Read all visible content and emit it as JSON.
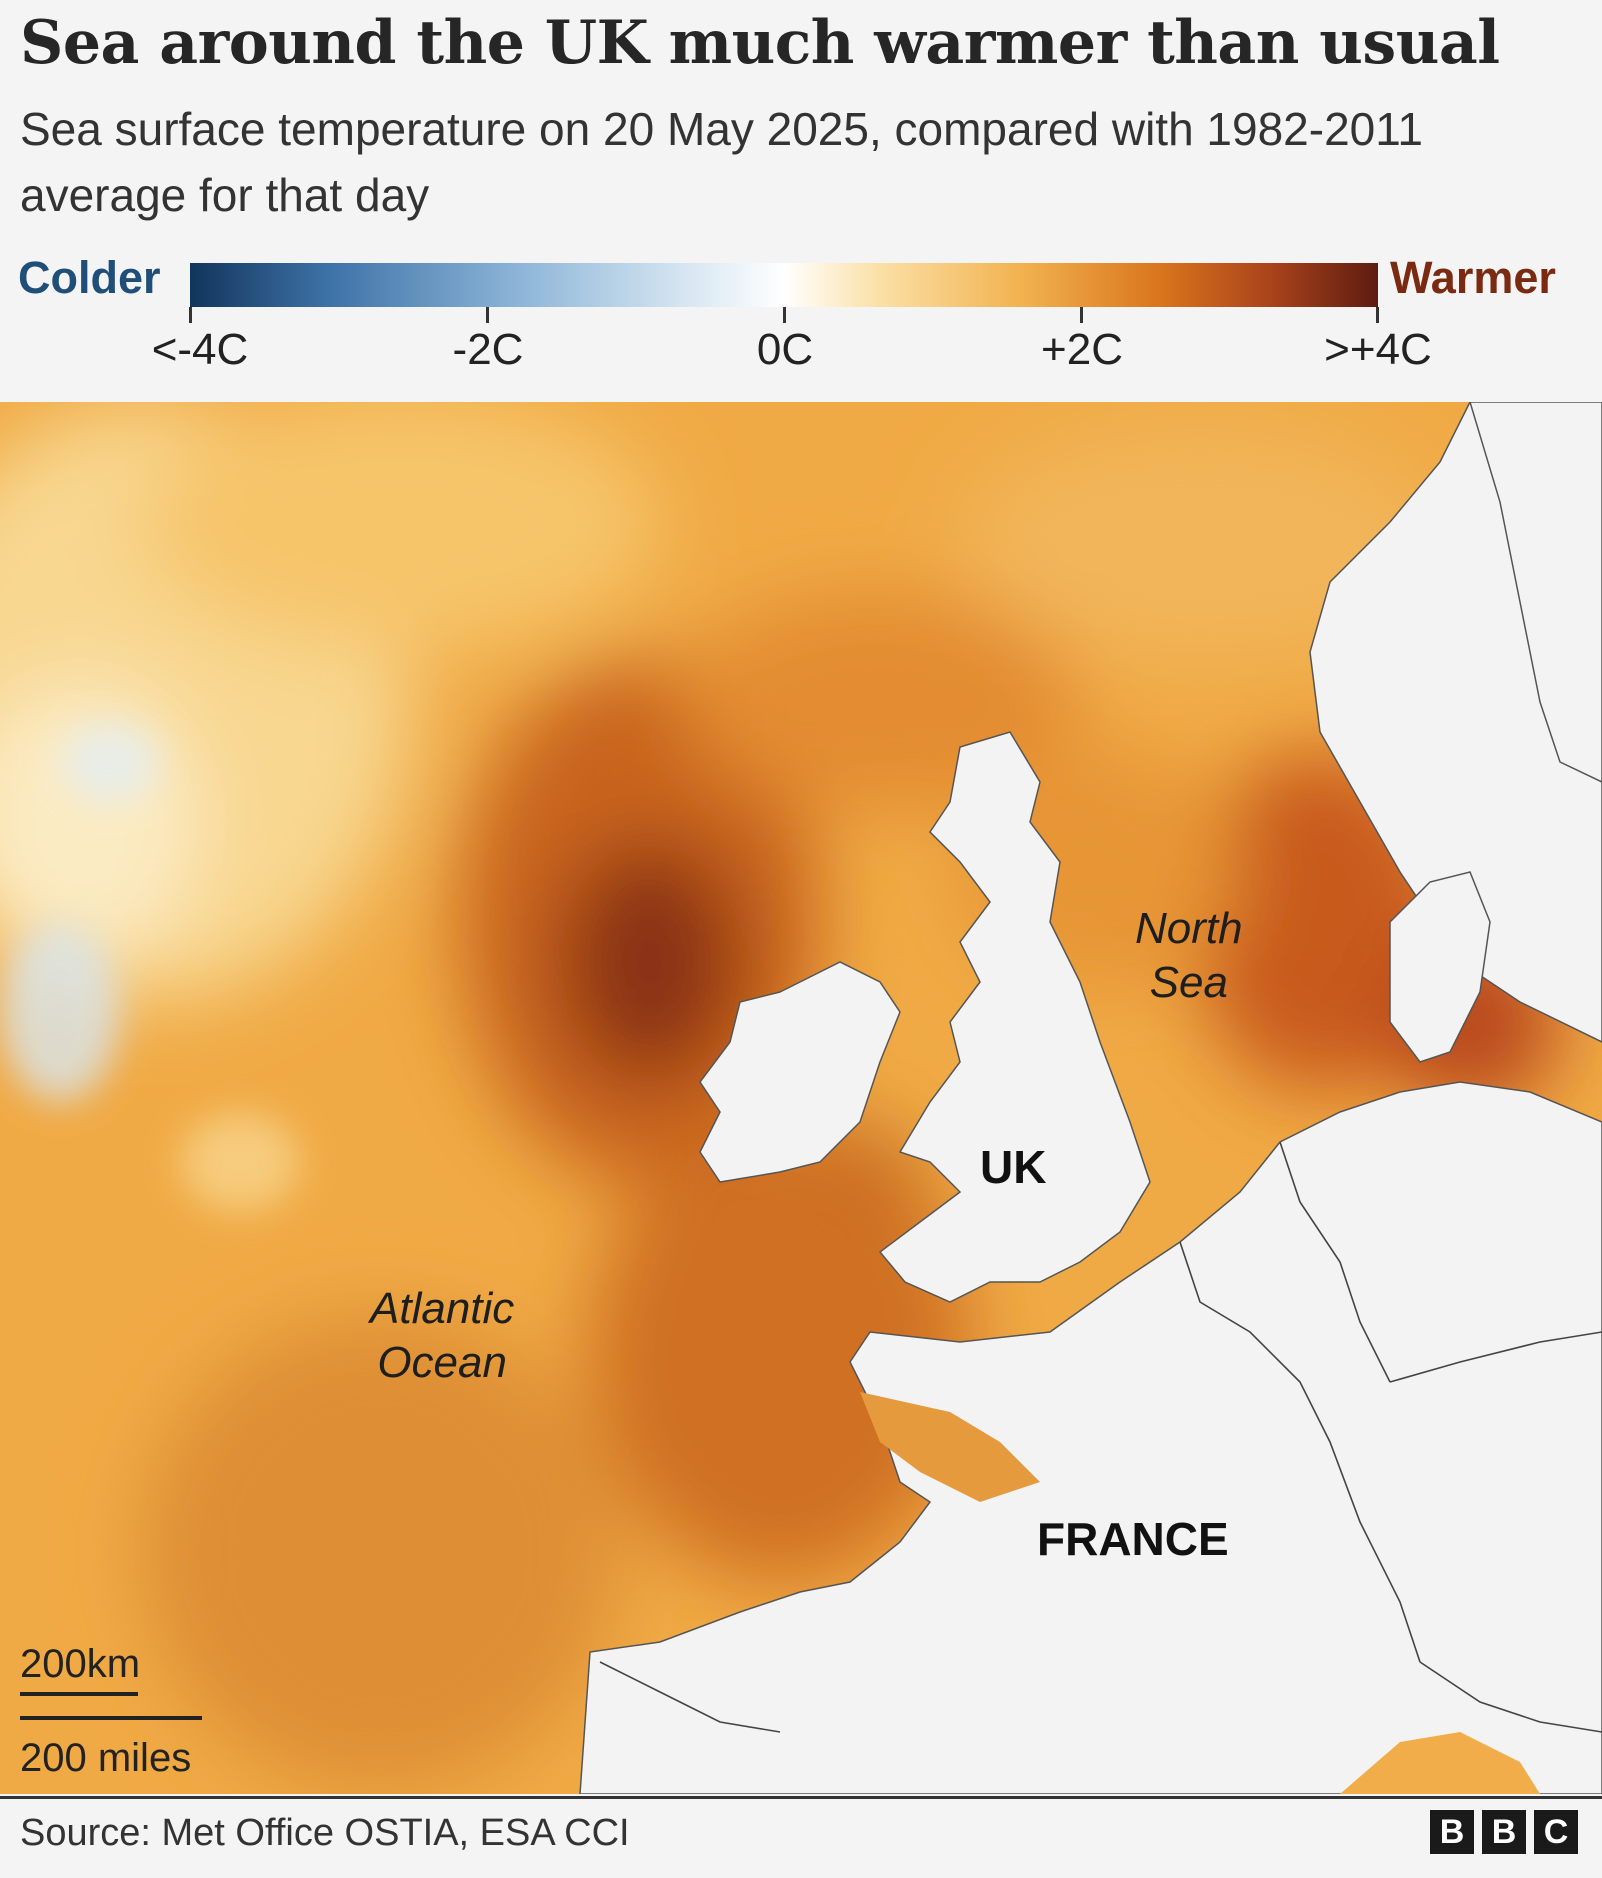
{
  "title": "Sea around the UK much warmer than usual",
  "subtitle": "Sea surface temperature on 20 May 2025, compared with 1982-2011 average for that day",
  "legend": {
    "cold_label": "Colder",
    "warm_label": "Warmer",
    "ticks": [
      "<-4C",
      "-2C",
      "0C",
      "+2C",
      ">+4C"
    ],
    "colors": {
      "cold": "#12355c",
      "neutral": "#ffffff",
      "warm": "#5e1c10"
    }
  },
  "map": {
    "sea_labels": {
      "atlantic": "Atlantic\nOcean",
      "north_sea": "North\nSea"
    },
    "country_labels": {
      "uk": "UK",
      "france": "FRANCE"
    },
    "scale": {
      "km": "200km",
      "miles": "200 miles"
    }
  },
  "footer": {
    "source": "Source: Met Office OSTIA, ESA CCI",
    "logo": [
      "B",
      "B",
      "C"
    ]
  }
}
